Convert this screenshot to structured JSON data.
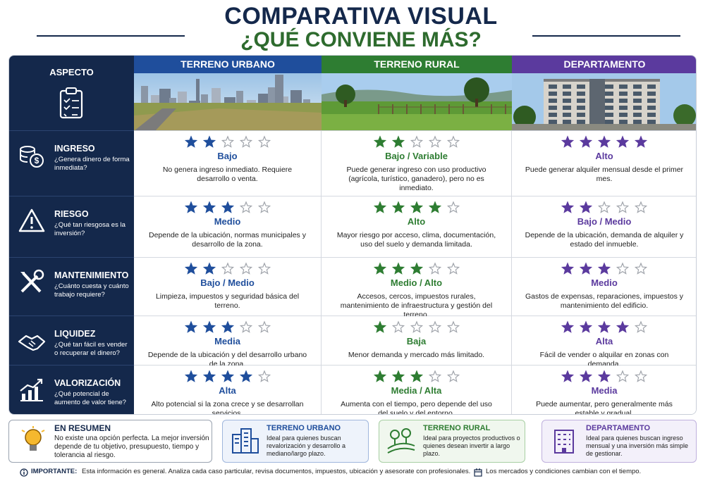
{
  "header": {
    "title": "COMPARATIVA VISUAL",
    "subtitle": "¿QUÉ CONVIENE MÁS?"
  },
  "table": {
    "aspect_header": "ASPECTO",
    "max_rating": 5,
    "columns": [
      {
        "name": "TERRENO URBANO",
        "color": "#1f4e9c"
      },
      {
        "name": "TERRENO RURAL",
        "color": "#2e7d32"
      },
      {
        "name": "DEPARTAMENTO",
        "color": "#5b3a9e"
      }
    ],
    "rows": [
      {
        "aspect": "INGRESO",
        "question": "¿Genera dinero de forma inmediata?",
        "ratings": [
          2,
          2,
          5
        ],
        "levels": [
          "Bajo",
          "Bajo / Variable",
          "Alto"
        ],
        "descriptions": [
          "No genera ingreso inmediato. Requiere desarrollo o venta.",
          "Puede generar ingreso con uso productivo (agrícola, turístico, ganadero), pero no es inmediato.",
          "Puede generar alquiler mensual desde el primer mes."
        ]
      },
      {
        "aspect": "RIESGO",
        "question": "¿Qué tan riesgosa es la inversión?",
        "ratings": [
          3,
          4,
          2
        ],
        "levels": [
          "Medio",
          "Alto",
          "Bajo / Medio"
        ],
        "descriptions": [
          "Depende de la ubicación, normas municipales y desarrollo de la zona.",
          "Mayor riesgo por acceso, clima, documentación, uso del suelo y demanda limitada.",
          "Depende de la ubicación, demanda de alquiler y estado del inmueble."
        ]
      },
      {
        "aspect": "MANTENIMIENTO",
        "question": "¿Cuánto cuesta y cuánto trabajo requiere?",
        "ratings": [
          2,
          3,
          3
        ],
        "levels": [
          "Bajo / Medio",
          "Medio / Alto",
          "Medio"
        ],
        "descriptions": [
          "Limpieza, impuestos y seguridad básica del terreno.",
          "Accesos, cercos, impuestos rurales, mantenimiento de infraestructura y gestión del terreno.",
          "Gastos de expensas, reparaciones, impuestos y mantenimiento del edificio."
        ]
      },
      {
        "aspect": "LIQUIDEZ",
        "question": "¿Qué tan fácil es vender o recuperar el dinero?",
        "ratings": [
          3,
          1,
          4
        ],
        "levels": [
          "Media",
          "Baja",
          "Alta"
        ],
        "descriptions": [
          "Depende de la ubicación y del desarrollo urbano de la zona.",
          "Menor demanda y mercado más limitado.",
          "Fácil de vender o alquilar en zonas con demanda."
        ]
      },
      {
        "aspect": "VALORIZACIÓN",
        "question": "¿Qué potencial de aumento de valor tiene?",
        "ratings": [
          4,
          3,
          3
        ],
        "levels": [
          "Alta",
          "Media / Alta",
          "Media"
        ],
        "descriptions": [
          "Alto potencial si la zona crece y se desarrollan servicios.",
          "Aumenta con el tiempo, pero depende del uso del suelo y del entorno.",
          "Puede aumentar, pero generalmente más estable y gradual."
        ]
      }
    ]
  },
  "summary": {
    "title": "EN RESUMEN",
    "text": "No existe una opción perfecta. La mejor inversión depende de tu objetivo, presupuesto, tiempo y tolerancia al riesgo.",
    "boxes": [
      {
        "title": "TERRENO URBANO",
        "text": "Ideal para quienes buscan revalorización y desarrollo a mediano/largo plazo."
      },
      {
        "title": "TERRENO RURAL",
        "text": "Ideal para proyectos productivos o quienes desean invertir a largo plazo."
      },
      {
        "title": "DEPARTAMENTO",
        "text": "Ideal para quienes buscan ingreso mensual y una inversión más simple de gestionar."
      }
    ]
  },
  "footer": {
    "label": "IMPORTANTE:",
    "text": "Esta información es general. Analiza cada caso particular, revisa documentos, impuestos, ubicación y asesorate con profesionales.",
    "note": "Los mercados y condiciones cambian con el tiempo."
  }
}
